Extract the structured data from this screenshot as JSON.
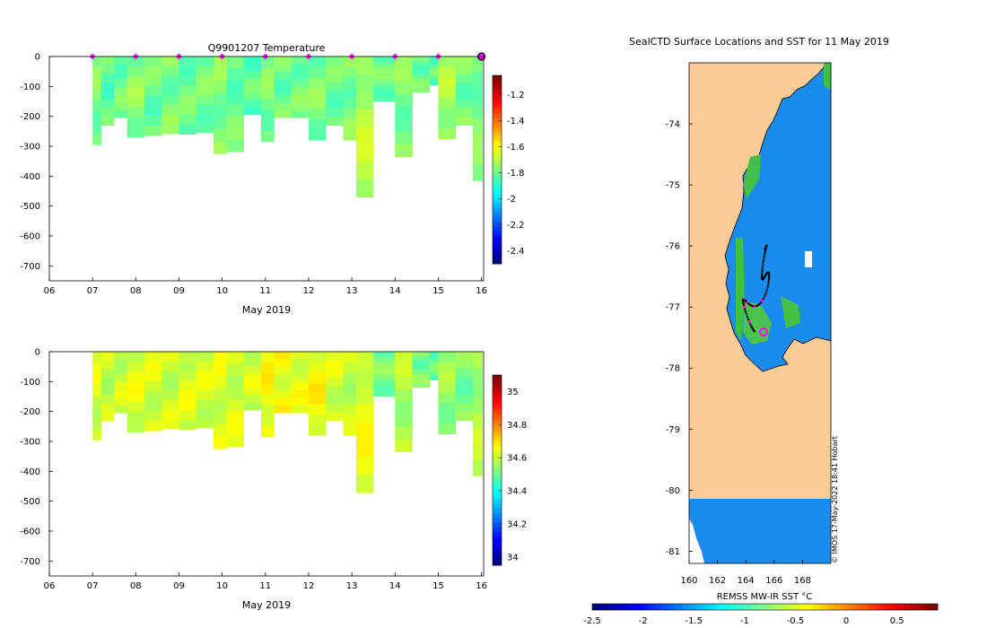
{
  "chart_data": [
    {
      "type": "heatmap",
      "title": "Q9901207  Temperature",
      "xlabel": "May 2019",
      "x_ticks": [
        "06",
        "07",
        "08",
        "09",
        "10",
        "11",
        "12",
        "13",
        "14",
        "15",
        "16"
      ],
      "xlim": [
        6,
        16.05
      ],
      "ylim": [
        -750,
        0
      ],
      "y_ticks": [
        0,
        -100,
        -200,
        -300,
        -400,
        -500,
        -600,
        -700
      ],
      "colorbar": {
        "ticks": [
          -1.2,
          -1.4,
          -1.6,
          -1.8,
          -2,
          -2.2,
          -2.4
        ],
        "min": -2.5,
        "max": -1.05
      },
      "colormap_name": "jet",
      "markers_color": "#ff00ff",
      "marker_days": [
        7,
        8,
        9,
        10,
        11,
        12,
        13,
        14,
        15,
        16
      ],
      "profiles": [
        {
          "day": 7.0,
          "depth": 295,
          "value": -1.78
        },
        {
          "day": 7.2,
          "depth": 230,
          "value": -1.82
        },
        {
          "day": 7.5,
          "depth": 205,
          "value": -1.8
        },
        {
          "day": 7.8,
          "depth": 270,
          "value": -1.76
        },
        {
          "day": 8.2,
          "depth": 265,
          "value": -1.8
        },
        {
          "day": 8.6,
          "depth": 258,
          "value": -1.78
        },
        {
          "day": 9.0,
          "depth": 260,
          "value": -1.8
        },
        {
          "day": 9.4,
          "depth": 255,
          "value": -1.79
        },
        {
          "day": 9.8,
          "depth": 325,
          "value": -1.77
        },
        {
          "day": 10.1,
          "depth": 318,
          "value": -1.8
        },
        {
          "day": 10.5,
          "depth": 195,
          "value": -1.82
        },
        {
          "day": 10.9,
          "depth": 285,
          "value": -1.78
        },
        {
          "day": 11.2,
          "depth": 205,
          "value": -1.8
        },
        {
          "day": 11.6,
          "depth": 205,
          "value": -1.79
        },
        {
          "day": 12.0,
          "depth": 280,
          "value": -1.78
        },
        {
          "day": 12.4,
          "depth": 230,
          "value": -1.8
        },
        {
          "day": 12.8,
          "depth": 280,
          "value": -1.78
        },
        {
          "day": 13.1,
          "depth": 470,
          "value": -1.7
        },
        {
          "day": 13.5,
          "depth": 150,
          "value": -1.8
        },
        {
          "day": 14.0,
          "depth": 335,
          "value": -1.78
        },
        {
          "day": 14.4,
          "depth": 120,
          "value": -1.8
        },
        {
          "day": 14.8,
          "depth": 95,
          "value": -1.82
        },
        {
          "day": 15.0,
          "depth": 275,
          "value": -1.72
        },
        {
          "day": 15.4,
          "depth": 230,
          "value": -1.79
        },
        {
          "day": 15.8,
          "depth": 415,
          "value": -1.78
        }
      ]
    },
    {
      "type": "heatmap",
      "title": "",
      "xlabel": "May 2019",
      "x_ticks": [
        "06",
        "07",
        "08",
        "09",
        "10",
        "11",
        "12",
        "13",
        "14",
        "15",
        "16"
      ],
      "xlim": [
        6,
        16.05
      ],
      "ylim": [
        -750,
        0
      ],
      "y_ticks": [
        0,
        -100,
        -200,
        -300,
        -400,
        -500,
        -600,
        -700
      ],
      "colorbar": {
        "ticks": [
          35,
          34.8,
          34.6,
          34.4,
          34.2,
          34
        ],
        "min": 33.95,
        "max": 35.1
      },
      "colormap_name": "jet",
      "profiles": [
        {
          "day": 7.0,
          "depth": 295,
          "value": 34.62
        },
        {
          "day": 7.2,
          "depth": 230,
          "value": 34.6
        },
        {
          "day": 7.5,
          "depth": 205,
          "value": 34.61
        },
        {
          "day": 7.8,
          "depth": 270,
          "value": 34.63
        },
        {
          "day": 8.2,
          "depth": 265,
          "value": 34.62
        },
        {
          "day": 8.6,
          "depth": 258,
          "value": 34.61
        },
        {
          "day": 9.0,
          "depth": 260,
          "value": 34.63
        },
        {
          "day": 9.4,
          "depth": 255,
          "value": 34.62
        },
        {
          "day": 9.8,
          "depth": 325,
          "value": 34.63
        },
        {
          "day": 10.1,
          "depth": 318,
          "value": 34.62
        },
        {
          "day": 10.5,
          "depth": 195,
          "value": 34.62
        },
        {
          "day": 10.9,
          "depth": 285,
          "value": 34.66
        },
        {
          "day": 11.2,
          "depth": 205,
          "value": 34.65
        },
        {
          "day": 11.6,
          "depth": 205,
          "value": 34.64
        },
        {
          "day": 12.0,
          "depth": 280,
          "value": 34.66
        },
        {
          "day": 12.4,
          "depth": 230,
          "value": 34.62
        },
        {
          "day": 12.8,
          "depth": 280,
          "value": 34.6
        },
        {
          "day": 13.1,
          "depth": 470,
          "value": 34.64
        },
        {
          "day": 13.5,
          "depth": 150,
          "value": 34.52
        },
        {
          "day": 14.0,
          "depth": 335,
          "value": 34.58
        },
        {
          "day": 14.4,
          "depth": 120,
          "value": 34.52
        },
        {
          "day": 14.8,
          "depth": 95,
          "value": 34.5
        },
        {
          "day": 15.0,
          "depth": 275,
          "value": 34.55
        },
        {
          "day": 15.4,
          "depth": 230,
          "value": 34.52
        },
        {
          "day": 15.8,
          "depth": 415,
          "value": 34.58
        }
      ]
    },
    {
      "type": "map",
      "title": "SealCTD Surface Locations and SST for 11 May 2019",
      "x_ticks": [
        "160",
        "162",
        "164",
        "166",
        "168"
      ],
      "y_ticks": [
        "-74",
        "-75",
        "-76",
        "-77",
        "-78",
        "-79",
        "-80",
        "-81"
      ],
      "xlim": [
        160,
        170
      ],
      "ylim": [
        -81.2,
        -73
      ],
      "colorbar": {
        "label": "REMSS MW-IR SST °C",
        "ticks": [
          "-2.5",
          "-2",
          "-1.5",
          "-1",
          "-0.5",
          "0",
          "0.5"
        ],
        "min": -2.5,
        "max": 0.9
      },
      "credit": "© IMOS 17-May-2022 18:41 Hobart",
      "land_color": "#fccc96",
      "ocean_color": "#1a8cf0",
      "track_color": "#000000",
      "recent_color": "#ff00ff"
    }
  ]
}
